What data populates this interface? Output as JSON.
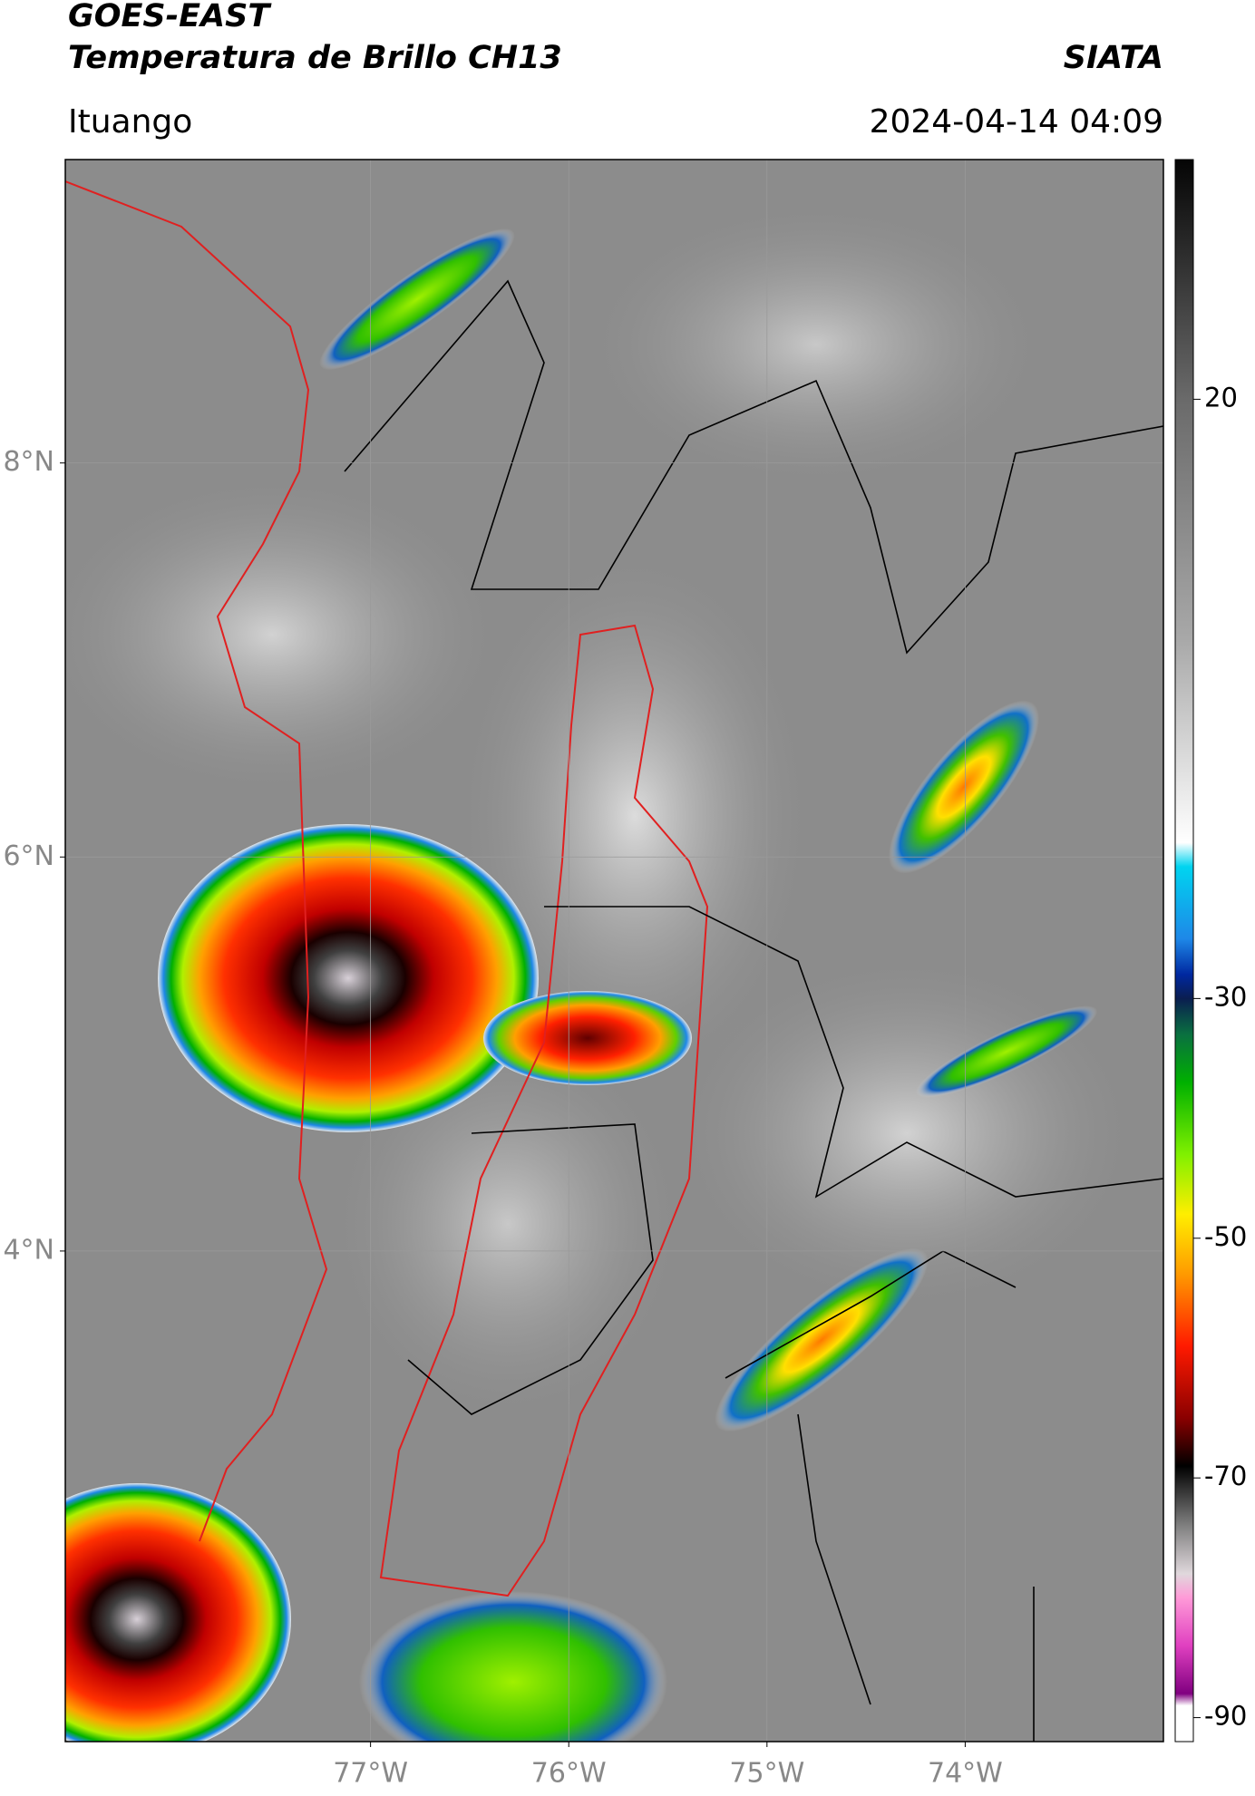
{
  "header": {
    "title": "GOES-EAST",
    "subtitle": "Temperatura de Brillo CH13",
    "brand": "SIATA",
    "location": "Ituango",
    "datetime": "2024-04-14 04:09"
  },
  "map": {
    "lat_range": [
      1.51,
      9.54
    ],
    "lon_range": [
      -78.54,
      -73.0
    ],
    "lat_ticks": [
      {
        "value": 8,
        "label": "8°N"
      },
      {
        "value": 6,
        "label": "6°N"
      },
      {
        "value": 4,
        "label": "4°N"
      }
    ],
    "lon_ticks": [
      {
        "value": -77,
        "label": "77°W"
      },
      {
        "value": -76,
        "label": "76°W"
      },
      {
        "value": -75,
        "label": "75°W"
      },
      {
        "value": -74,
        "label": "74°W"
      }
    ]
  },
  "colorbar": {
    "range": [
      -92,
      40
    ],
    "ticks": [
      20,
      -30,
      -50,
      -70,
      -90
    ],
    "colormap": [
      {
        "value": 40,
        "color": "#050505"
      },
      {
        "value": 20,
        "color": "#6a6a6a"
      },
      {
        "value": 0,
        "color": "#a8a8a8"
      },
      {
        "value": -17,
        "color": "#ffffff"
      },
      {
        "value": -19,
        "color": "#00d4f0"
      },
      {
        "value": -25,
        "color": "#1e88e8"
      },
      {
        "value": -28,
        "color": "#0028a0"
      },
      {
        "value": -30,
        "color": "#0a1e50"
      },
      {
        "value": -33,
        "color": "#0a7040"
      },
      {
        "value": -37,
        "color": "#00b000"
      },
      {
        "value": -43,
        "color": "#80f000"
      },
      {
        "value": -48,
        "color": "#ffee00"
      },
      {
        "value": -53,
        "color": "#ff9a00"
      },
      {
        "value": -59,
        "color": "#ff1a00"
      },
      {
        "value": -65,
        "color": "#8a0000"
      },
      {
        "value": -69,
        "color": "#000000"
      },
      {
        "value": -74,
        "color": "#808080"
      },
      {
        "value": -78,
        "color": "#e0d8dc"
      },
      {
        "value": -80,
        "color": "#ff9ad8"
      },
      {
        "value": -84,
        "color": "#e040c0"
      },
      {
        "value": -88,
        "color": "#800080"
      },
      {
        "value": -89,
        "color": "#ffffff"
      },
      {
        "value": -92,
        "color": "#ffffff"
      }
    ]
  }
}
